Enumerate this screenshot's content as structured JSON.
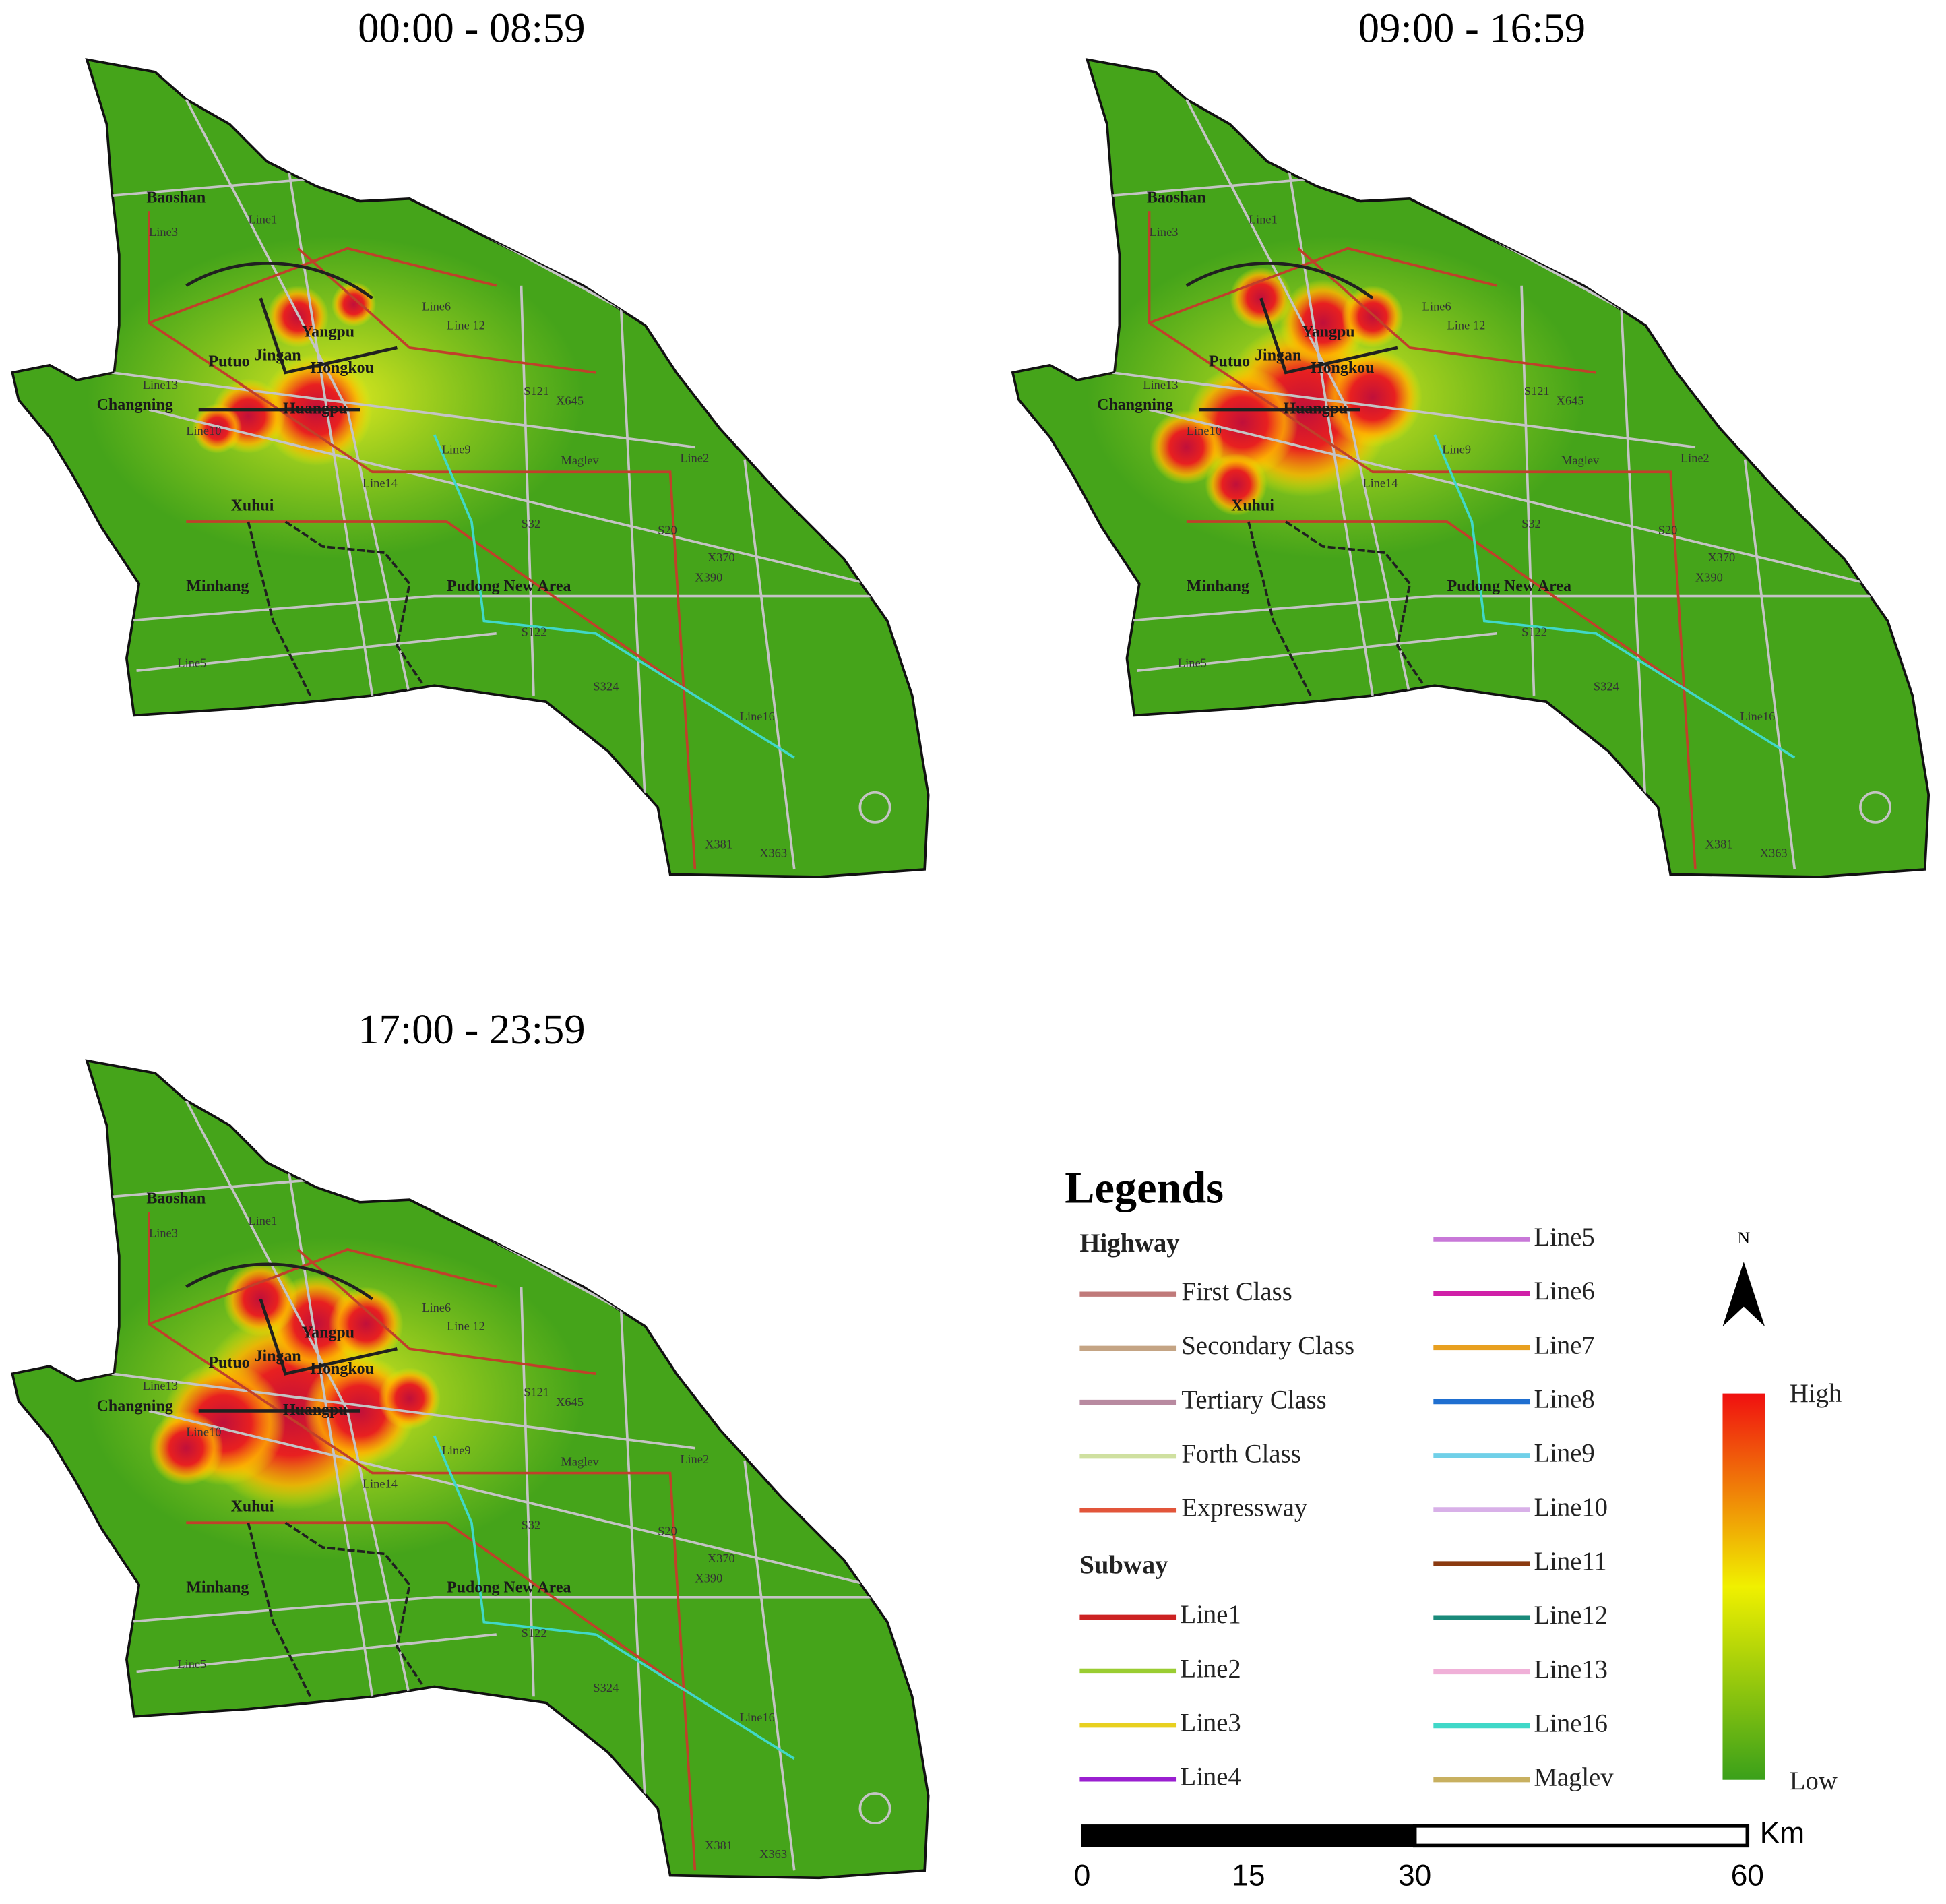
{
  "panels": [
    {
      "title": "00:00 - 08:59"
    },
    {
      "title": "09:00 - 16:59"
    },
    {
      "title": "17:00 - 23:59"
    }
  ],
  "map_labels": {
    "districts": [
      "Baoshan",
      "Yangpu",
      "Putuo",
      "Jingan",
      "Hongkou",
      "Changning",
      "Huangpu",
      "Xuhui",
      "Minhang",
      "Pudong New Area"
    ],
    "routes": [
      "Line 12",
      "Line14",
      "Maglev",
      "Line16",
      "Line5",
      "Line6",
      "Line2",
      "Line10",
      "Line13",
      "Line9",
      "Line1",
      "Line3",
      "S32",
      "X363",
      "S122",
      "S324",
      "X381",
      "S20",
      "X370",
      "X390",
      "S121",
      "X645"
    ]
  },
  "legend": {
    "title": "Legends",
    "highway": {
      "title": "Highway",
      "items": [
        {
          "name": "First Class",
          "color": "#c07a7a"
        },
        {
          "name": "Secondary Class",
          "color": "#c4a484"
        },
        {
          "name": "Tertiary Class",
          "color": "#b88aa0"
        },
        {
          "name": "Forth Class",
          "color": "#cfe0a0"
        },
        {
          "name": "Expressway",
          "color": "#e2553a"
        }
      ]
    },
    "subway": {
      "title": "Subway",
      "items": [
        {
          "name": "Line1",
          "color": "#cc2222"
        },
        {
          "name": "Line2",
          "color": "#9acd32"
        },
        {
          "name": "Line3",
          "color": "#e8d020"
        },
        {
          "name": "Line4",
          "color": "#9a1fd0"
        },
        {
          "name": "Line5",
          "color": "#c878d8"
        },
        {
          "name": "Line6",
          "color": "#d020a8"
        },
        {
          "name": "Line7",
          "color": "#e8a020"
        },
        {
          "name": "Line8",
          "color": "#1f6fd0"
        },
        {
          "name": "Line9",
          "color": "#70d0e8"
        },
        {
          "name": "Line10",
          "color": "#d8b0e8"
        },
        {
          "name": "Line11",
          "color": "#8b3a10"
        },
        {
          "name": "Line12",
          "color": "#1a8a7a"
        },
        {
          "name": "Line13",
          "color": "#f0b0d8"
        },
        {
          "name": "Line16",
          "color": "#40d8c8"
        },
        {
          "name": "Maglev",
          "color": "#c8b060"
        }
      ]
    },
    "density": {
      "high": "High",
      "low": "Low"
    },
    "north": "N",
    "scale_bar": {
      "unit": "Km",
      "ticks": [
        0,
        15,
        30,
        60
      ]
    }
  }
}
